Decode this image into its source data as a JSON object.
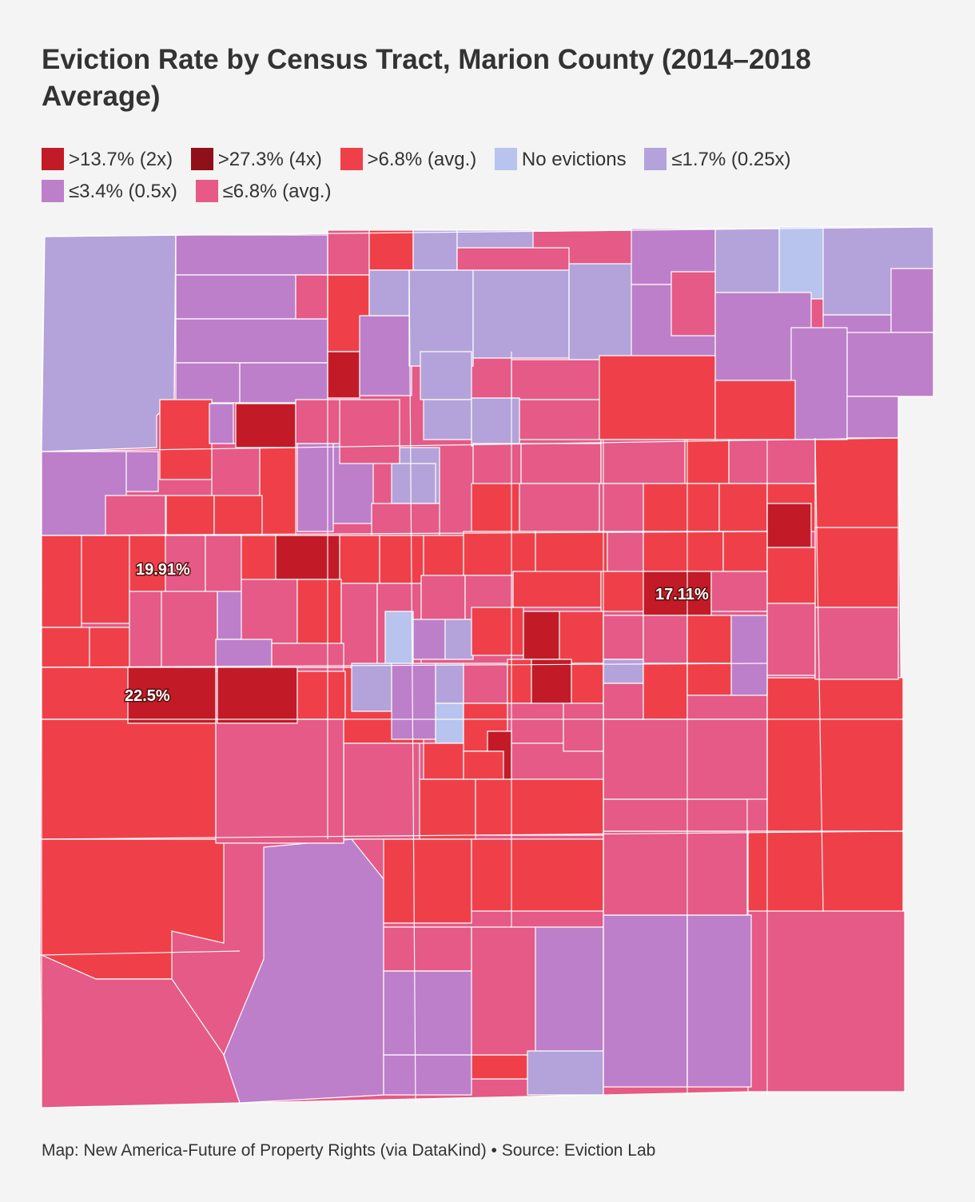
{
  "title": "Eviction Rate by Census Tract, Marion County (2014–2018 Average)",
  "legend": [
    {
      "label": ">13.7% (2x)",
      "color": "#c21b27"
    },
    {
      "label": ">27.3% (4x)",
      "color": "#8f1019"
    },
    {
      "label": ">6.8% (avg.)",
      "color": "#ef404a"
    },
    {
      "label": "No evictions",
      "color": "#b8c4ee"
    },
    {
      "label": "≤1.7% (0.25x)",
      "color": "#b3a3da"
    },
    {
      "label": "≤3.4% (0.5x)",
      "color": "#bd7fca"
    },
    {
      "label": "≤6.8% (avg.)",
      "color": "#e55a86"
    }
  ],
  "callouts": [
    {
      "label": "19.91%"
    },
    {
      "label": "22.5%"
    },
    {
      "label": "17.11%"
    }
  ],
  "footer": "Map: New America-Future of Property Rights (via DataKind) • Source: Eviction Lab"
}
